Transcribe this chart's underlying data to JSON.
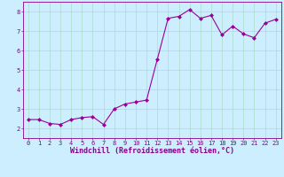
{
  "x": [
    0,
    1,
    2,
    3,
    4,
    5,
    6,
    7,
    8,
    9,
    10,
    11,
    12,
    13,
    14,
    15,
    16,
    17,
    18,
    19,
    20,
    21,
    22,
    23
  ],
  "y": [
    2.45,
    2.45,
    2.25,
    2.2,
    2.45,
    2.55,
    2.6,
    2.2,
    3.0,
    3.25,
    3.35,
    3.45,
    5.55,
    7.65,
    7.75,
    8.1,
    7.65,
    7.8,
    6.8,
    7.25,
    6.85,
    6.65,
    7.4,
    7.6
  ],
  "line_color": "#990099",
  "marker": "D",
  "marker_size": 2.0,
  "linewidth": 0.8,
  "bg_color": "#cceeff",
  "grid_color": "#aaddcc",
  "xlabel": "Windchill (Refroidissement éolien,°C)",
  "xlim": [
    -0.5,
    23.5
  ],
  "ylim": [
    1.5,
    8.5
  ],
  "yticks": [
    2,
    3,
    4,
    5,
    6,
    7,
    8
  ],
  "xticks": [
    0,
    1,
    2,
    3,
    4,
    5,
    6,
    7,
    8,
    9,
    10,
    11,
    12,
    13,
    14,
    15,
    16,
    17,
    18,
    19,
    20,
    21,
    22,
    23
  ],
  "tick_color": "#880088",
  "label_color": "#880088",
  "tick_fontsize": 5.0,
  "xlabel_fontsize": 6.0
}
